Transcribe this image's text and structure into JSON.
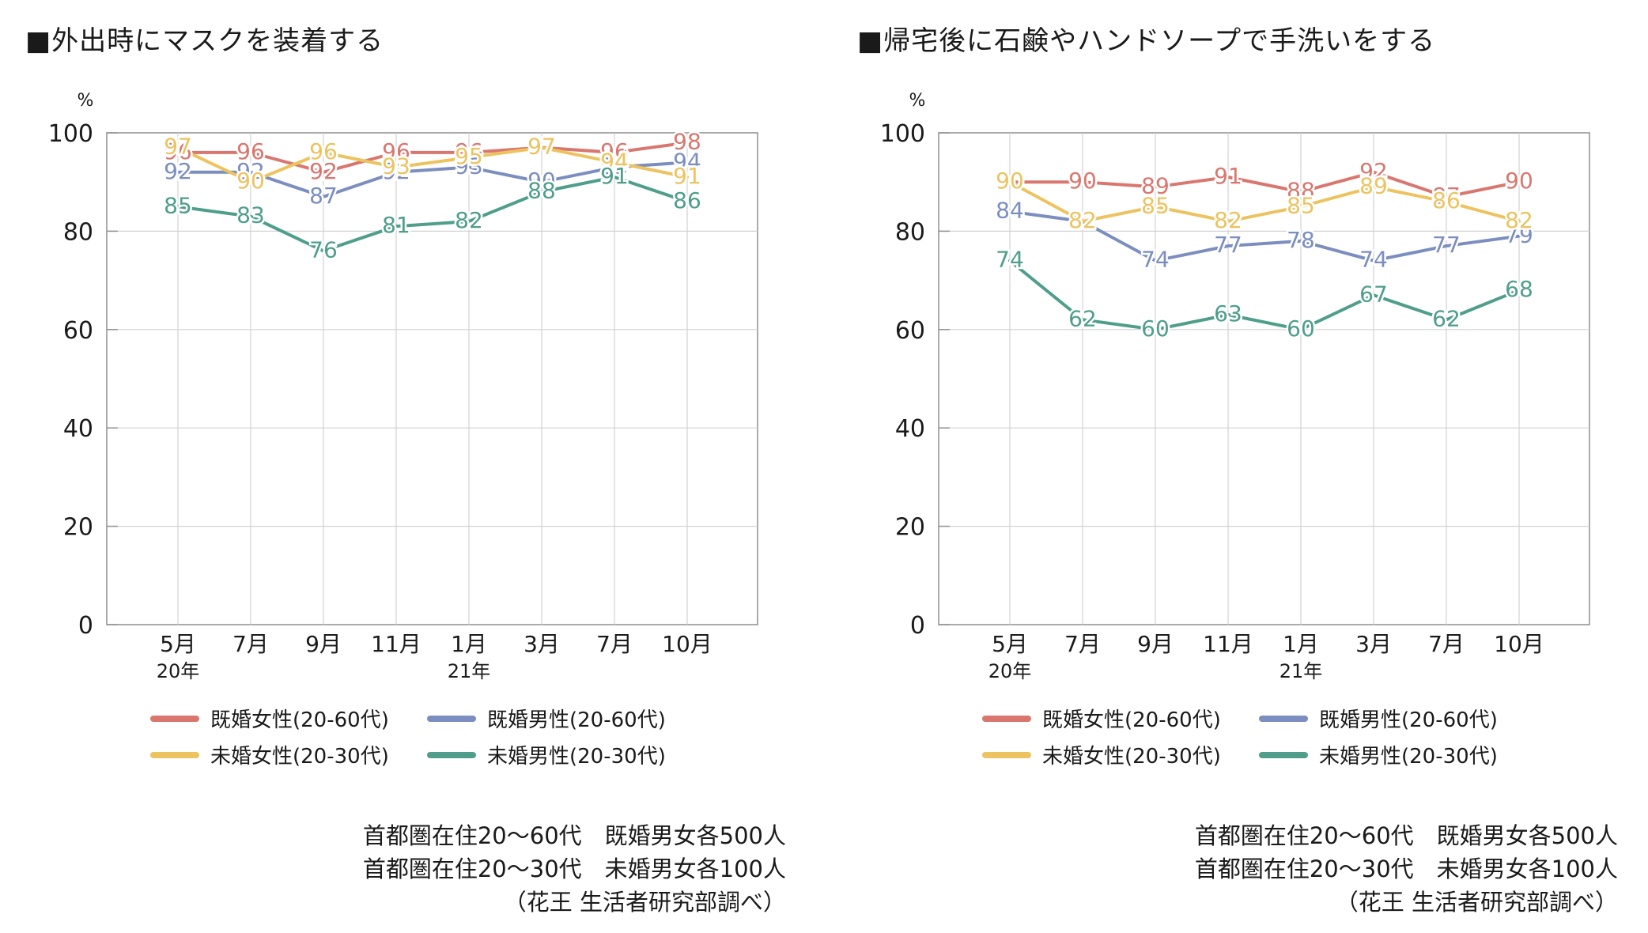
{
  "colors": {
    "married_female": "#d9776f",
    "married_male": "#7b8ebf",
    "single_female": "#ecc35f",
    "single_male": "#4f9e8c",
    "grid": "#d2d2d2",
    "axis": "#8f8f8f"
  },
  "legend": [
    {
      "key": "married_female",
      "label": "既婚女性(20-60代)"
    },
    {
      "key": "married_male",
      "label": "既婚男性(20-60代)"
    },
    {
      "key": "single_female",
      "label": "未婚女性(20-30代)"
    },
    {
      "key": "single_male",
      "label": "未婚男性(20-30代)"
    }
  ],
  "notes": [
    "首都圏在住20〜60代　既婚男女各500人",
    "首都圏在住20〜30代　未婚男女各100人",
    "（花王 生活者研究部調べ）"
  ],
  "chart_data": [
    {
      "type": "line",
      "title": "■外出時にマスクを装着する",
      "ylabel": "%",
      "ylim": [
        0,
        100
      ],
      "yticks": [
        0,
        20,
        40,
        60,
        80,
        100
      ],
      "categories": [
        "5月",
        "7月",
        "9月",
        "11月",
        "1月",
        "3月",
        "7月",
        "10月"
      ],
      "year_labels": [
        {
          "index": 0,
          "label": "20年"
        },
        {
          "index": 4,
          "label": "21年"
        }
      ],
      "series": [
        {
          "key": "married_female",
          "name": "既婚女性(20-60代)",
          "values": [
            96,
            96,
            92,
            96,
            96,
            97,
            96,
            98
          ]
        },
        {
          "key": "married_male",
          "name": "既婚男性(20-60代)",
          "values": [
            92,
            92,
            87,
            92,
            93,
            90,
            93,
            94
          ]
        },
        {
          "key": "single_female",
          "name": "未婚女性(20-30代)",
          "values": [
            97,
            90,
            96,
            93,
            95,
            97,
            94,
            91
          ]
        },
        {
          "key": "single_male",
          "name": "未婚男性(20-30代)",
          "values": [
            85,
            83,
            76,
            81,
            82,
            88,
            91,
            86
          ]
        }
      ]
    },
    {
      "type": "line",
      "title": "■帰宅後に石鹸やハンドソープで手洗いをする",
      "ylabel": "%",
      "ylim": [
        0,
        100
      ],
      "yticks": [
        0,
        20,
        40,
        60,
        80,
        100
      ],
      "categories": [
        "5月",
        "7月",
        "9月",
        "11月",
        "1月",
        "3月",
        "7月",
        "10月"
      ],
      "year_labels": [
        {
          "index": 0,
          "label": "20年"
        },
        {
          "index": 4,
          "label": "21年"
        }
      ],
      "series": [
        {
          "key": "married_female",
          "name": "既婚女性(20-60代)",
          "values": [
            90,
            90,
            89,
            91,
            88,
            92,
            87,
            90
          ]
        },
        {
          "key": "married_male",
          "name": "既婚男性(20-60代)",
          "values": [
            84,
            82,
            74,
            77,
            78,
            74,
            77,
            79
          ]
        },
        {
          "key": "single_female",
          "name": "未婚女性(20-30代)",
          "values": [
            90,
            82,
            85,
            82,
            85,
            89,
            86,
            82
          ]
        },
        {
          "key": "single_male",
          "name": "未婚男性(20-30代)",
          "values": [
            74,
            62,
            60,
            63,
            60,
            67,
            62,
            68
          ]
        }
      ]
    }
  ]
}
